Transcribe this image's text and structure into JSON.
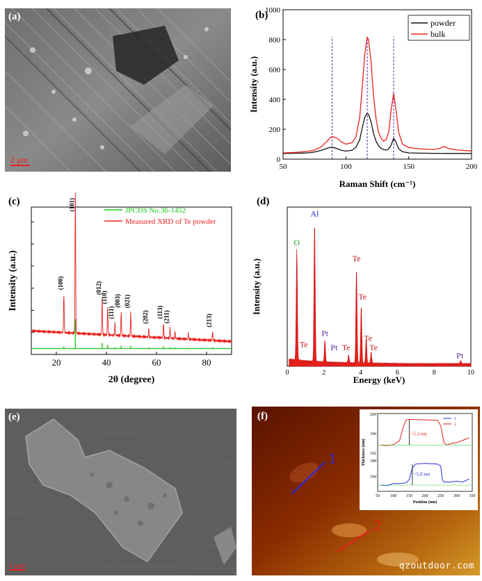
{
  "figure": {
    "panels": {
      "a": {
        "label": "(a)",
        "scale_bar": "2 μm",
        "kind": "SEM image of Te bulk"
      },
      "b": {
        "label": "(b)"
      },
      "c": {
        "label": "(c)"
      },
      "d": {
        "label": "(d)"
      },
      "e": {
        "label": "(e)",
        "scale_bar": "1 μm"
      },
      "f": {
        "label": "(f)",
        "trace_label_1": "1",
        "trace_label_2": "2",
        "watermark": "qzoutdoor.com"
      }
    },
    "colors": {
      "red": "#e8201c",
      "black": "#111111",
      "green": "#19c819",
      "blue": "#2a2ae0",
      "green_label": "#1a9a1a",
      "purple": "#5b2a9a"
    }
  },
  "chart_data": [
    {
      "id": "b",
      "type": "line",
      "title": "",
      "xlabel": "Raman Shift (cm⁻¹)",
      "ylabel": "Intensity (a.u.)",
      "xlim": [
        50,
        200
      ],
      "ylim": [
        0,
        1000
      ],
      "xticks": [
        "50",
        "100",
        "150",
        "200"
      ],
      "yticks": [
        "0",
        "200",
        "400",
        "600",
        "800",
        "1000"
      ],
      "legend": [
        "powder",
        "bulk"
      ],
      "legend_position": "top-right",
      "peaks": [
        89,
        117,
        138
      ],
      "series": [
        {
          "name": "powder",
          "color": "#111111",
          "x": [
            50,
            60,
            70,
            75,
            80,
            85,
            88,
            90,
            93,
            96,
            100,
            105,
            108,
            111,
            113,
            115,
            117,
            118,
            120,
            122,
            124,
            126,
            128,
            130,
            132,
            134,
            136,
            138,
            140,
            142,
            145,
            150,
            160,
            170,
            180,
            190,
            200
          ],
          "y": [
            38,
            39,
            42,
            48,
            58,
            72,
            80,
            78,
            70,
            60,
            54,
            60,
            80,
            130,
            210,
            280,
            305,
            300,
            250,
            170,
            120,
            90,
            72,
            65,
            60,
            68,
            95,
            140,
            110,
            70,
            50,
            42,
            40,
            39,
            38,
            38,
            38
          ]
        },
        {
          "name": "bulk",
          "color": "#e8201c",
          "x": [
            50,
            60,
            70,
            75,
            80,
            85,
            88,
            90,
            93,
            96,
            100,
            105,
            108,
            111,
            113,
            115,
            117,
            118,
            120,
            122,
            124,
            126,
            128,
            130,
            132,
            134,
            136,
            138,
            140,
            142,
            145,
            150,
            155,
            160,
            170,
            175,
            178,
            182,
            190,
            200
          ],
          "y": [
            42,
            45,
            52,
            62,
            80,
            120,
            148,
            150,
            140,
            118,
            100,
            110,
            150,
            280,
            480,
            700,
            815,
            800,
            650,
            420,
            270,
            180,
            140,
            120,
            130,
            180,
            330,
            440,
            320,
            180,
            100,
            78,
            72,
            68,
            65,
            72,
            85,
            70,
            60,
            55
          ]
        }
      ]
    },
    {
      "id": "c",
      "type": "line",
      "xlabel": "2θ (degree)",
      "ylabel": "Intensity (a.u.)",
      "xlim": [
        10,
        90
      ],
      "ylim": [
        0,
        100
      ],
      "xticks": [
        "20",
        "40",
        "60",
        "80"
      ],
      "legend": [
        "JPCDS No.36-1452",
        "Measured XRD of Te powder"
      ],
      "legend_position": "top-right",
      "series": [
        {
          "name": "Measured XRD of Te powder",
          "color": "#e8201c",
          "peaks": [
            [
              23.0,
              26
            ],
            [
              27.6,
              96
            ],
            [
              38.3,
              24
            ],
            [
              40.5,
              18
            ],
            [
              43.4,
              8
            ],
            [
              45.9,
              16
            ],
            [
              49.7,
              16
            ],
            [
              56.9,
              6
            ],
            [
              62.8,
              10
            ],
            [
              65.4,
              7
            ],
            [
              67.4,
              5
            ],
            [
              72.7,
              4
            ],
            [
              82.4,
              6
            ]
          ]
        },
        {
          "name": "JPCDS No.36-1452",
          "color": "#19c819",
          "sticks": [
            [
              23.0,
              1.5
            ],
            [
              27.6,
              20
            ],
            [
              38.3,
              4
            ],
            [
              40.5,
              2.5
            ],
            [
              43.4,
              1
            ],
            [
              45.9,
              2
            ],
            [
              49.7,
              2
            ],
            [
              56.9,
              1
            ],
            [
              62.8,
              1.5
            ],
            [
              65.4,
              1
            ],
            [
              67.4,
              1
            ],
            [
              72.7,
              0.5
            ],
            [
              82.4,
              1
            ]
          ]
        }
      ],
      "annotations": [
        {
          "text": "(100)",
          "x": 23.0
        },
        {
          "text": "(101)",
          "x": 27.6
        },
        {
          "text": "(012)",
          "x": 38.3
        },
        {
          "text": "(110)",
          "x": 40.5
        },
        {
          "text": "(111)",
          "x": 43.4
        },
        {
          "text": "(003)",
          "x": 45.9
        },
        {
          "text": "(021)",
          "x": 49.7
        },
        {
          "text": "(202)",
          "x": 56.9
        },
        {
          "text": "(113)",
          "x": 62.8
        },
        {
          "text": "(211)",
          "x": 65.4
        },
        {
          "text": "(213)",
          "x": 82.4
        }
      ]
    },
    {
      "id": "d",
      "type": "bar",
      "xlabel": "Energy (keV)",
      "ylabel": "Intensity (a.u.)",
      "xlim": [
        0,
        10
      ],
      "ylim": [
        0,
        100
      ],
      "xticks": [
        "0",
        "2",
        "4",
        "6",
        "8",
        "10"
      ],
      "spectrum": [
        [
          0.52,
          70
        ],
        [
          1.49,
          88
        ],
        [
          2.05,
          14
        ],
        [
          3.34,
          5
        ],
        [
          3.77,
          60
        ],
        [
          4.03,
          36
        ],
        [
          4.3,
          16
        ],
        [
          4.57,
          7
        ],
        [
          9.44,
          2
        ]
      ],
      "annotations": [
        {
          "text": "O",
          "x": 0.52,
          "color": "#1a9a1a"
        },
        {
          "text": "Al",
          "x": 1.49,
          "color": "#2a2ae0"
        },
        {
          "text": "Te",
          "x": 0.9,
          "color": "#c81818"
        },
        {
          "text": "Pt",
          "x": 2.05,
          "color": "#5b2a9a"
        },
        {
          "text": "Pt",
          "x": 2.55,
          "color": "#5b2a9a"
        },
        {
          "text": "Te",
          "x": 3.2,
          "color": "#c81818"
        },
        {
          "text": "Te",
          "x": 3.77,
          "color": "#c81818"
        },
        {
          "text": "Te",
          "x": 4.1,
          "color": "#c81818"
        },
        {
          "text": "Te",
          "x": 4.4,
          "color": "#c81818"
        },
        {
          "text": "Te",
          "x": 4.7,
          "color": "#c81818"
        },
        {
          "text": "Pt",
          "x": 9.4,
          "color": "#5b2a9a"
        }
      ]
    },
    {
      "id": "f-inset",
      "type": "line",
      "xlabel": "Position (nm)",
      "ylabel": "Thickness (nm)",
      "xlim": [
        50,
        350
      ],
      "xticks": [
        "50",
        "100",
        "150",
        "200",
        "250",
        "300",
        "350"
      ],
      "yticks": [
        "184",
        "188",
        "192",
        "196",
        "200"
      ],
      "legend": [
        "1",
        "2"
      ],
      "annotations": [
        {
          "text": "~5.3 nm",
          "series": "2"
        },
        {
          "text": "~5.8 nm",
          "series": "1"
        }
      ],
      "series": [
        {
          "name": "2",
          "color": "#e8201c",
          "x": [
            60,
            80,
            100,
            110,
            120,
            130,
            140,
            150,
            200,
            240,
            250,
            260,
            270,
            280,
            300,
            320,
            340
          ],
          "y": [
            193.5,
            193.4,
            193.6,
            194,
            194.5,
            197,
            198.7,
            198.8,
            198.7,
            198.6,
            197.5,
            194,
            193.5,
            193.8,
            194,
            194.5,
            195
          ]
        },
        {
          "name": "1",
          "color": "#2a2ae0",
          "x": [
            60,
            80,
            100,
            120,
            140,
            150,
            160,
            170,
            200,
            240,
            250,
            255,
            260,
            280,
            300,
            320,
            340
          ],
          "y": [
            181.6,
            181.5,
            182,
            182,
            182.2,
            183,
            186,
            187,
            187.2,
            187,
            186.5,
            183,
            182.4,
            182.4,
            182.6,
            182.4,
            183.2
          ]
        }
      ]
    }
  ]
}
